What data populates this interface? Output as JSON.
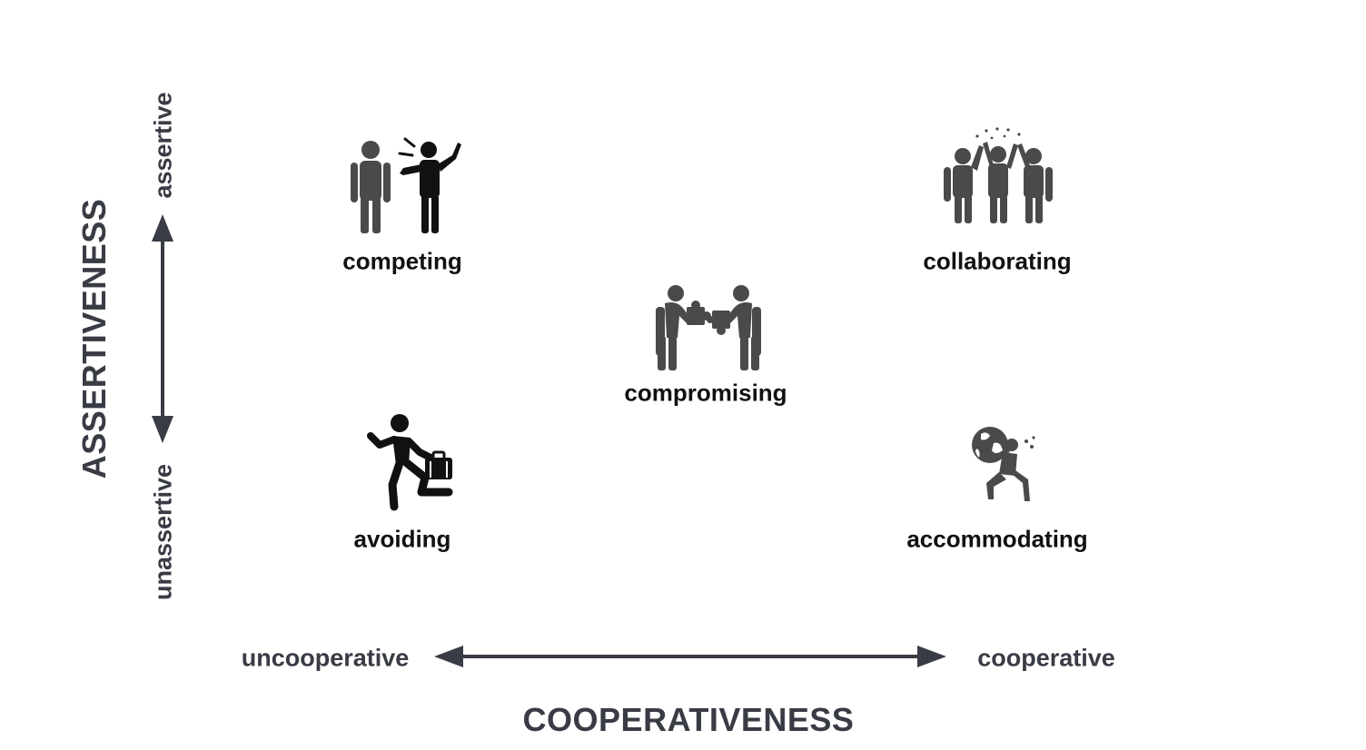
{
  "axes": {
    "y_title": "ASSERTIVENESS",
    "y_top": "assertive",
    "y_bottom": "unassertive",
    "x_title": "COOPERATIVENESS",
    "x_left": "uncooperative",
    "x_right": "cooperative"
  },
  "styles": {
    "competing": "competing",
    "collaborating": "collaborating",
    "compromising": "compromising",
    "avoiding": "avoiding",
    "accommodating": "accommodating"
  },
  "colors": {
    "axis": "#393b45",
    "label": "#111111",
    "icon_dark": "#111111",
    "icon_gray": "#4a4a4a"
  }
}
